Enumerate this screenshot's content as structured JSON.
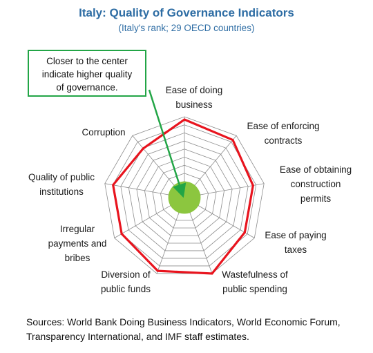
{
  "chart_data": {
    "type": "radar",
    "title": "Italy: Quality of Governance Indicators",
    "subtitle": "(Italy's rank; 29 OECD countries)",
    "annotation": [
      "Closer to the center",
      "indicate higher quality",
      "of governance."
    ],
    "categories": [
      [
        "Ease of doing",
        "business"
      ],
      [
        "Ease of enforcing",
        "contracts"
      ],
      [
        "Ease of obtaining",
        "construction",
        "permits"
      ],
      [
        "Ease of paying",
        "taxes"
      ],
      [
        "Wastefulness of",
        "public spending"
      ],
      [
        "Diversion of",
        "public funds"
      ],
      [
        "Irregular",
        "payments and",
        "bribes"
      ],
      [
        "Quality of public",
        "institutions"
      ],
      [
        "Corruption"
      ]
    ],
    "series": [
      {
        "values": [
          28,
          27,
          25,
          25,
          29,
          28,
          26,
          26,
          23
        ],
        "color": "#e8141e"
      }
    ],
    "rmax": 29,
    "rings": 10,
    "center_fill": "#8cc63f",
    "grid_color": "#8c8c8c",
    "arrow_color": "#22a546"
  },
  "sources": "Sources: World Bank Doing Business Indicators, World Economic Forum, Transparency International, and IMF staff estimates."
}
